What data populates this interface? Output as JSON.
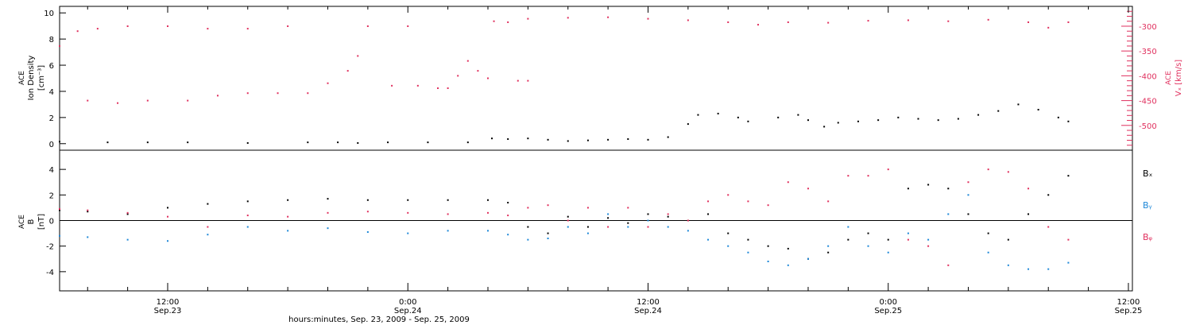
{
  "colors": {
    "black": "#000000",
    "pink": "#e0305e",
    "blue": "#1e88d8",
    "axis": "#000000"
  },
  "xaxis": {
    "label": "hours:minutes, Sep. 23, 2009 - Sep. 25, 2009",
    "range_hours": [
      -17.4,
      36.2
    ],
    "ticks": [
      {
        "h": -12,
        "time": "12:00",
        "date": "Sep.23"
      },
      {
        "h": 0,
        "time": "0:00",
        "date": "Sep.24"
      },
      {
        "h": 12,
        "time": "12:00",
        "date": "Sep.24"
      },
      {
        "h": 24,
        "time": "0:00",
        "date": "Sep.25"
      },
      {
        "h": 36,
        "time": "12:00",
        "date": "Sep.25"
      }
    ]
  },
  "chart_data": [
    {
      "type": "scatter",
      "panel": "density-velocity",
      "ylabel_left": [
        "ACE",
        "Ion Density",
        "[cm⁻³]"
      ],
      "ylabel_right": [
        "ACE",
        "Vₓ [km/s]"
      ],
      "ylim_left": [
        -0.5,
        10.5
      ],
      "yticks_left": [
        0,
        2,
        4,
        6,
        8,
        10
      ],
      "ylim_right": [
        -550,
        -260
      ],
      "yticks_right": [
        -300,
        -350,
        -400,
        -450,
        -500
      ],
      "series": [
        {
          "axis": "left",
          "color": "#000000",
          "points": [
            [
              -17.4,
              0.15
            ],
            [
              -15,
              0.1
            ],
            [
              -13,
              0.1
            ],
            [
              -11,
              0.1
            ],
            [
              -8,
              0.05
            ],
            [
              -5,
              0.1
            ],
            [
              -3.5,
              0.1
            ],
            [
              -2.5,
              0.05
            ],
            [
              -1,
              0.1
            ],
            [
              1,
              0.1
            ],
            [
              3,
              0.1
            ],
            [
              4.2,
              0.4
            ],
            [
              5,
              0.35
            ],
            [
              6,
              0.4
            ],
            [
              7,
              0.3
            ],
            [
              8,
              0.2
            ],
            [
              9,
              0.25
            ],
            [
              10,
              0.3
            ],
            [
              11,
              0.35
            ],
            [
              12,
              0.3
            ],
            [
              13,
              0.5
            ],
            [
              14,
              1.5
            ],
            [
              14.5,
              2.2
            ],
            [
              15.5,
              2.3
            ],
            [
              16.5,
              2.0
            ],
            [
              17,
              1.7
            ],
            [
              18.5,
              2.0
            ],
            [
              19.5,
              2.2
            ],
            [
              20,
              1.8
            ],
            [
              20.8,
              1.3
            ],
            [
              21.5,
              1.6
            ],
            [
              22.5,
              1.7
            ],
            [
              23.5,
              1.8
            ],
            [
              24.5,
              2.0
            ],
            [
              25.5,
              1.9
            ],
            [
              26.5,
              1.8
            ],
            [
              27.5,
              1.9
            ],
            [
              28.5,
              2.2
            ],
            [
              29.5,
              2.5
            ],
            [
              30.5,
              3.0
            ],
            [
              31.5,
              2.6
            ],
            [
              32.5,
              2.0
            ],
            [
              33,
              1.7
            ]
          ]
        },
        {
          "axis": "right",
          "color": "#e0305e",
          "points": [
            [
              -17.4,
              -340
            ],
            [
              -16.5,
              -310
            ],
            [
              -15.5,
              -305
            ],
            [
              -14,
              -300
            ],
            [
              -12,
              -300
            ],
            [
              -10,
              -305
            ],
            [
              -8,
              -305
            ],
            [
              -6,
              -300
            ],
            [
              -16,
              -450
            ],
            [
              -14.5,
              -455
            ],
            [
              -13,
              -450
            ],
            [
              -11,
              -450
            ],
            [
              -9.5,
              -440
            ],
            [
              -8,
              -435
            ],
            [
              -6.5,
              -435
            ],
            [
              -5,
              -435
            ],
            [
              -4,
              -415
            ],
            [
              -3,
              -390
            ],
            [
              -2.5,
              -360
            ],
            [
              -2,
              -300
            ],
            [
              0,
              -300
            ],
            [
              -0.8,
              -420
            ],
            [
              0.5,
              -420
            ],
            [
              1.5,
              -425
            ],
            [
              2,
              -425
            ],
            [
              2.5,
              -400
            ],
            [
              3,
              -370
            ],
            [
              3.5,
              -390
            ],
            [
              4,
              -405
            ],
            [
              4.3,
              -290
            ],
            [
              5,
              -292
            ],
            [
              5.5,
              -410
            ],
            [
              6,
              -410
            ],
            [
              6,
              -285
            ],
            [
              8,
              -283
            ],
            [
              10,
              -282
            ],
            [
              12,
              -285
            ],
            [
              14,
              -288
            ],
            [
              16,
              -292
            ],
            [
              17.5,
              -297
            ],
            [
              19,
              -292
            ],
            [
              21,
              -293
            ],
            [
              23,
              -289
            ],
            [
              25,
              -288
            ],
            [
              27,
              -290
            ],
            [
              29,
              -287
            ],
            [
              31,
              -292
            ],
            [
              32,
              -303
            ],
            [
              33,
              -292
            ]
          ]
        }
      ]
    },
    {
      "type": "scatter",
      "panel": "magnetic-field",
      "ylabel_left": [
        "ACE",
        "B",
        "[nT]"
      ],
      "ylim": [
        -5.5,
        5.5
      ],
      "yticks": [
        4,
        2,
        0,
        -2,
        -4
      ],
      "legend": [
        {
          "name": "Bₓ",
          "color": "#000000"
        },
        {
          "name": "Bᵧ",
          "color": "#1e88d8"
        },
        {
          "name": "Bᵩ",
          "color": "#e0305e"
        }
      ],
      "series": [
        {
          "name": "Bx",
          "color": "#000000",
          "points": [
            [
              -17.4,
              0.8
            ],
            [
              -16,
              0.7
            ],
            [
              -14,
              0.5
            ],
            [
              -12,
              1.0
            ],
            [
              -10,
              1.3
            ],
            [
              -8,
              1.5
            ],
            [
              -6,
              1.6
            ],
            [
              -4,
              1.7
            ],
            [
              -2,
              1.6
            ],
            [
              0,
              1.6
            ],
            [
              2,
              1.6
            ],
            [
              4,
              1.6
            ],
            [
              5,
              1.4
            ],
            [
              6,
              -0.5
            ],
            [
              7,
              -1.0
            ],
            [
              8,
              0.3
            ],
            [
              9,
              -0.5
            ],
            [
              10,
              0.2
            ],
            [
              11,
              -0.2
            ],
            [
              12,
              0.5
            ],
            [
              13,
              0.3
            ],
            [
              14,
              0.0
            ],
            [
              15,
              0.5
            ],
            [
              16,
              -1.0
            ],
            [
              17,
              -1.5
            ],
            [
              18,
              -2.0
            ],
            [
              19,
              -2.2
            ],
            [
              20,
              -3.0
            ],
            [
              21,
              -2.5
            ],
            [
              22,
              -1.5
            ],
            [
              23,
              -1.0
            ],
            [
              24,
              -1.5
            ],
            [
              25,
              2.5
            ],
            [
              26,
              2.8
            ],
            [
              27,
              2.5
            ],
            [
              28,
              0.5
            ],
            [
              29,
              -1.0
            ],
            [
              30,
              -1.5
            ],
            [
              31,
              0.5
            ],
            [
              32,
              2.0
            ],
            [
              33,
              3.5
            ]
          ]
        },
        {
          "name": "By",
          "color": "#1e88d8",
          "points": [
            [
              -17.4,
              -1.2
            ],
            [
              -16,
              -1.3
            ],
            [
              -14,
              -1.5
            ],
            [
              -12,
              -1.6
            ],
            [
              -10,
              -1.1
            ],
            [
              -8,
              -0.5
            ],
            [
              -6,
              -0.8
            ],
            [
              -4,
              -0.6
            ],
            [
              -2,
              -0.9
            ],
            [
              0,
              -1.0
            ],
            [
              2,
              -0.8
            ],
            [
              4,
              -0.8
            ],
            [
              5,
              -1.1
            ],
            [
              6,
              -1.5
            ],
            [
              7,
              -1.4
            ],
            [
              8,
              -0.5
            ],
            [
              9,
              -1.0
            ],
            [
              10,
              0.5
            ],
            [
              11,
              -0.5
            ],
            [
              12,
              0.0
            ],
            [
              13,
              -0.5
            ],
            [
              14,
              -0.8
            ],
            [
              15,
              -1.5
            ],
            [
              16,
              -2.0
            ],
            [
              17,
              -2.5
            ],
            [
              18,
              -3.2
            ],
            [
              19,
              -3.5
            ],
            [
              20,
              -3.0
            ],
            [
              21,
              -2.0
            ],
            [
              22,
              -0.5
            ],
            [
              23,
              -2.0
            ],
            [
              24,
              -2.5
            ],
            [
              25,
              -1.0
            ],
            [
              26,
              -1.5
            ],
            [
              27,
              0.5
            ],
            [
              28,
              2.0
            ],
            [
              29,
              -2.5
            ],
            [
              30,
              -3.5
            ],
            [
              31,
              -3.8
            ],
            [
              32,
              -3.8
            ],
            [
              33,
              -3.3
            ]
          ]
        },
        {
          "name": "Bz",
          "color": "#e0305e",
          "points": [
            [
              -17.4,
              0.9
            ],
            [
              -16,
              0.8
            ],
            [
              -14,
              0.6
            ],
            [
              -12,
              0.3
            ],
            [
              -10,
              -0.5
            ],
            [
              -8,
              0.4
            ],
            [
              -6,
              0.3
            ],
            [
              -4,
              0.6
            ],
            [
              -2,
              0.7
            ],
            [
              0,
              0.6
            ],
            [
              2,
              0.5
            ],
            [
              4,
              0.6
            ],
            [
              5,
              0.4
            ],
            [
              6,
              1.0
            ],
            [
              7,
              1.2
            ],
            [
              8,
              0.0
            ],
            [
              9,
              1.0
            ],
            [
              10,
              -0.5
            ],
            [
              11,
              1.0
            ],
            [
              12,
              -0.5
            ],
            [
              13,
              0.5
            ],
            [
              14,
              0.0
            ],
            [
              15,
              1.5
            ],
            [
              16,
              2.0
            ],
            [
              17,
              1.5
            ],
            [
              18,
              1.2
            ],
            [
              19,
              3.0
            ],
            [
              20,
              2.5
            ],
            [
              21,
              1.5
            ],
            [
              22,
              3.5
            ],
            [
              23,
              3.5
            ],
            [
              24,
              4.0
            ],
            [
              25,
              -1.5
            ],
            [
              26,
              -2.0
            ],
            [
              27,
              -3.5
            ],
            [
              28,
              3.0
            ],
            [
              29,
              4.0
            ],
            [
              30,
              3.8
            ],
            [
              31,
              2.5
            ],
            [
              32,
              -0.5
            ],
            [
              33,
              -1.5
            ]
          ]
        }
      ]
    }
  ]
}
